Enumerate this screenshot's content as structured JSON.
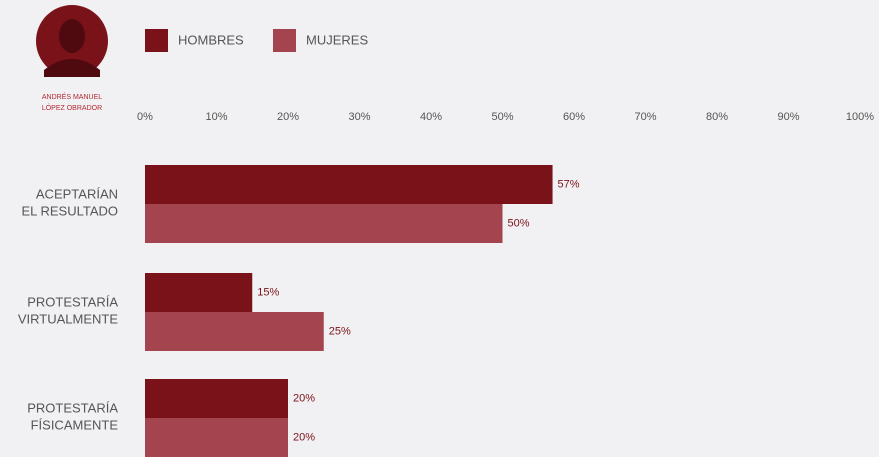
{
  "chart_data": {
    "type": "hbar",
    "annotation": [
      "ANDRÉS MANUEL",
      "LÓPEZ OBRADOR"
    ],
    "categories": [
      [
        "ACEPTARÍAN",
        "EL RESULTADO"
      ],
      [
        "PROTESTARÍA",
        "VIRTUALMENTE"
      ],
      [
        "PROTESTARÍA",
        "FÍSICAMENTE"
      ]
    ],
    "series": [
      {
        "name": "HOMBRES",
        "color": "#7a1219",
        "values": [
          57,
          15,
          20
        ],
        "value_labels": [
          "57%",
          "15%",
          "20%"
        ]
      },
      {
        "name": "MUJERES",
        "color": "#a3444e",
        "values": [
          50,
          25,
          20
        ],
        "value_labels": [
          "50%",
          "25%",
          "20%"
        ]
      }
    ],
    "xlim": [
      0,
      100
    ],
    "xticks": [
      {
        "value": 0,
        "label": "0%"
      },
      {
        "value": 10,
        "label": "10%"
      },
      {
        "value": 20,
        "label": "20%"
      },
      {
        "value": 30,
        "label": "30%"
      },
      {
        "value": 40,
        "label": "40%"
      },
      {
        "value": 50,
        "label": "50%"
      },
      {
        "value": 60,
        "label": "60%"
      },
      {
        "value": 70,
        "label": "70%"
      },
      {
        "value": 80,
        "label": "80%"
      },
      {
        "value": 90,
        "label": "90%"
      },
      {
        "value": 100,
        "label": "100%"
      }
    ],
    "legend": "top-left"
  }
}
